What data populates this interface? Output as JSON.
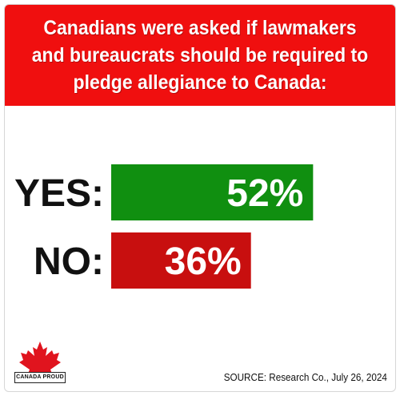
{
  "header": {
    "title": "Canadians were asked if lawmakers and bureaucrats should be required to pledge allegiance to Canada:"
  },
  "chart_data": {
    "type": "bar",
    "orientation": "horizontal",
    "categories": [
      "YES:",
      "NO:"
    ],
    "values": [
      52,
      36
    ],
    "value_labels": [
      "52%",
      "36%"
    ],
    "colors": [
      "#108f10",
      "#c80f0f"
    ],
    "xlim": [
      0,
      68
    ],
    "grid": false
  },
  "logo": {
    "text": "CANADA PROUD",
    "color": "#e0141e"
  },
  "footer": {
    "source": "SOURCE: Research Co., July 26, 2024"
  }
}
